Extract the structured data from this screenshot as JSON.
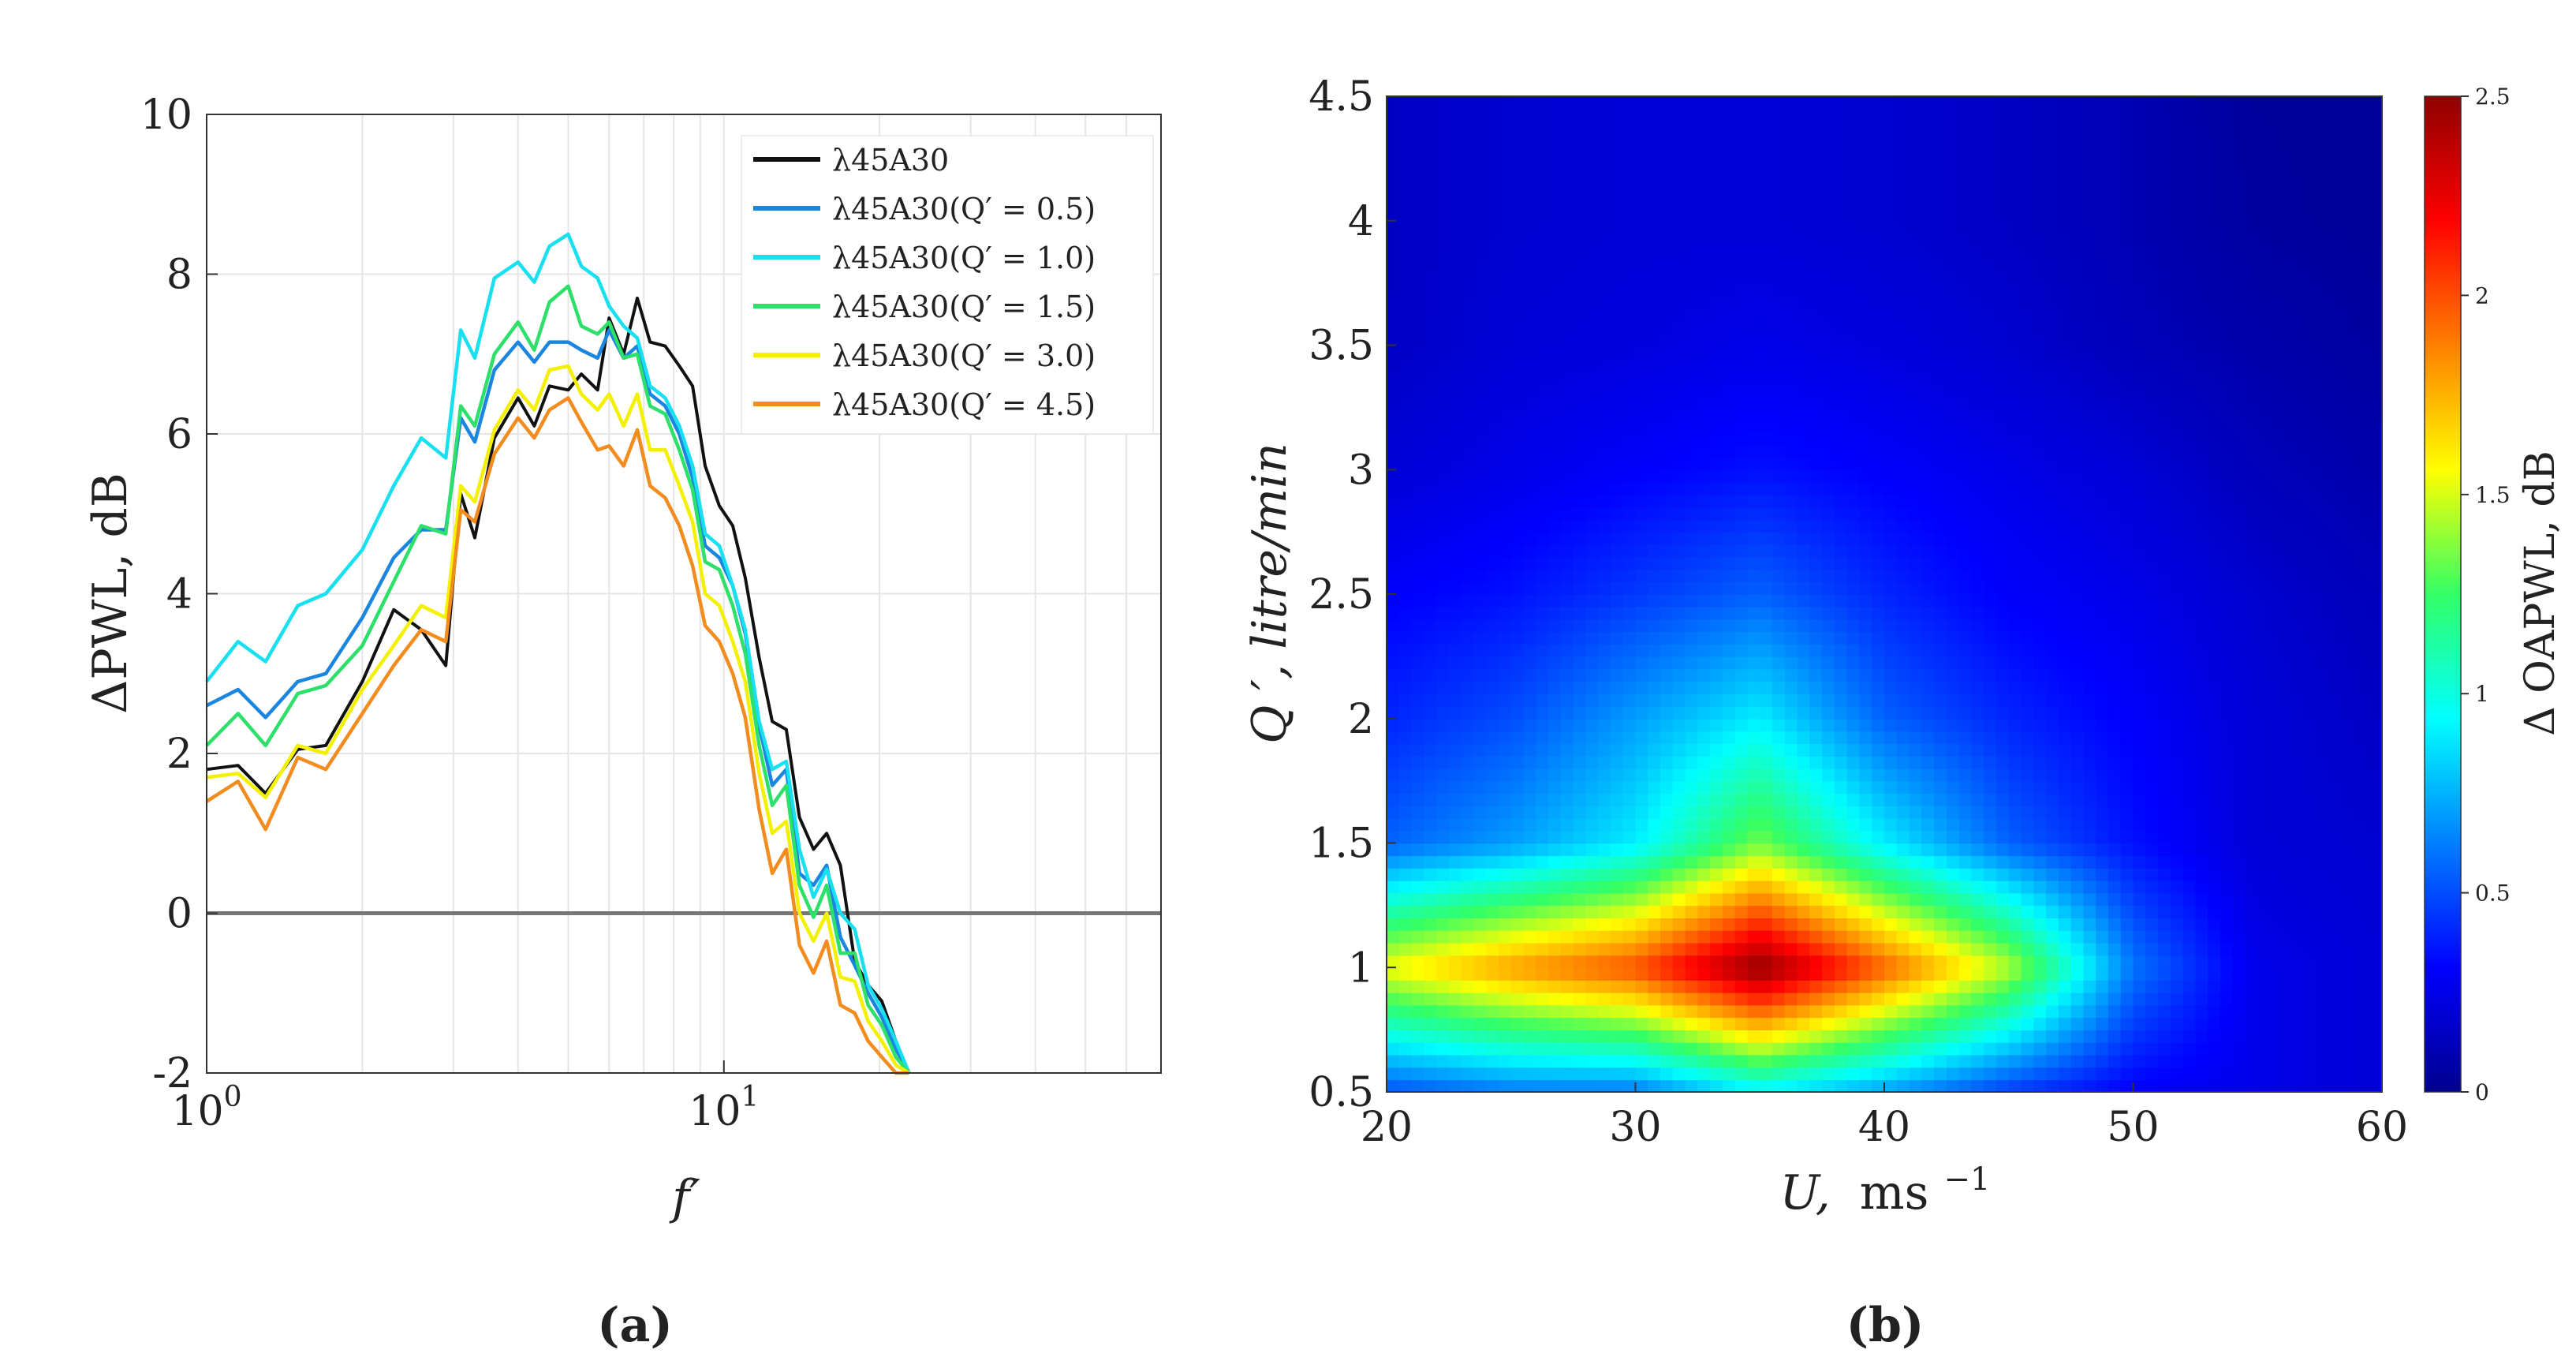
{
  "chart_data": [
    {
      "type": "line",
      "panel_label": "(a)",
      "xscale": "log",
      "xlim": [
        1,
        70
      ],
      "ylim": [
        -2,
        10
      ],
      "xlabel": "f′",
      "ylabel": "ΔPWL, dB",
      "xticks": [
        {
          "value": 1,
          "base": "10",
          "exp": "0"
        },
        {
          "value": 10,
          "base": "10",
          "exp": "1"
        }
      ],
      "yticks": [
        {
          "value": -2,
          "label": "-2"
        },
        {
          "value": 0,
          "label": "0"
        },
        {
          "value": 2,
          "label": "2"
        },
        {
          "value": 4,
          "label": "4"
        },
        {
          "value": 6,
          "label": "6"
        },
        {
          "value": 8,
          "label": "8"
        },
        {
          "value": 10,
          "label": "10"
        }
      ],
      "grid": true,
      "legend_position": "top-right",
      "x": [
        1.0,
        1.15,
        1.3,
        1.5,
        1.7,
        2.0,
        2.3,
        2.6,
        2.9,
        3.1,
        3.3,
        3.6,
        4.0,
        4.3,
        4.6,
        5.0,
        5.3,
        5.7,
        6.0,
        6.4,
        6.8,
        7.2,
        7.7,
        8.2,
        8.7,
        9.2,
        9.8,
        10.4,
        11.0,
        11.7,
        12.4,
        13.2,
        14.0,
        14.9,
        15.8,
        16.8,
        17.9,
        19.0,
        20.2,
        21.5,
        22.8
      ],
      "series": [
        {
          "name": "λ45A30",
          "color": "#111111",
          "values": [
            1.8,
            1.85,
            1.5,
            2.05,
            2.1,
            2.9,
            3.8,
            3.55,
            3.1,
            5.25,
            4.7,
            5.95,
            6.45,
            6.1,
            6.6,
            6.55,
            6.75,
            6.55,
            7.45,
            7.0,
            7.7,
            7.15,
            7.1,
            6.85,
            6.6,
            5.6,
            5.1,
            4.85,
            4.2,
            3.2,
            2.4,
            2.3,
            1.2,
            0.8,
            1.0,
            0.6,
            -0.6,
            -0.9,
            -1.1,
            -1.6,
            -2.0
          ]
        },
        {
          "name": "λ45A30(Q′ = 0.5)",
          "color": "#1a86e0",
          "values": [
            2.6,
            2.8,
            2.45,
            2.9,
            3.0,
            3.7,
            4.45,
            4.8,
            4.8,
            6.2,
            5.9,
            6.8,
            7.15,
            6.9,
            7.15,
            7.15,
            7.05,
            6.95,
            7.3,
            6.95,
            7.1,
            6.5,
            6.35,
            6.0,
            5.45,
            4.6,
            4.45,
            4.1,
            3.5,
            2.35,
            1.6,
            1.8,
            0.5,
            0.35,
            0.6,
            -0.3,
            -0.65,
            -1.0,
            -1.3,
            -1.7,
            -2.0
          ]
        },
        {
          "name": "λ45A30(Q′ = 1.0)",
          "color": "#19e0f0",
          "values": [
            2.9,
            3.4,
            3.15,
            3.85,
            4.0,
            4.55,
            5.35,
            5.95,
            5.7,
            7.3,
            6.95,
            7.95,
            8.15,
            7.9,
            8.35,
            8.5,
            8.1,
            7.95,
            7.6,
            7.35,
            7.2,
            6.6,
            6.45,
            6.1,
            5.6,
            4.75,
            4.6,
            4.1,
            3.55,
            2.4,
            1.8,
            1.9,
            0.8,
            0.2,
            0.55,
            0.0,
            -0.2,
            -0.9,
            -1.2,
            -1.6,
            -2.0
          ]
        },
        {
          "name": "λ45A30(Q′ = 1.5)",
          "color": "#2de06a",
          "values": [
            2.1,
            2.5,
            2.1,
            2.75,
            2.85,
            3.35,
            4.15,
            4.85,
            4.75,
            6.35,
            6.1,
            7.0,
            7.4,
            7.05,
            7.65,
            7.85,
            7.35,
            7.25,
            7.4,
            6.95,
            7.0,
            6.35,
            6.25,
            5.8,
            5.3,
            4.4,
            4.3,
            3.85,
            3.25,
            2.1,
            1.35,
            1.6,
            0.35,
            -0.05,
            0.35,
            -0.5,
            -0.5,
            -1.15,
            -1.4,
            -1.8,
            -2.0
          ]
        },
        {
          "name": "λ45A30(Q′ = 3.0)",
          "color": "#f3f000",
          "values": [
            1.7,
            1.75,
            1.45,
            2.1,
            2.0,
            2.8,
            3.35,
            3.85,
            3.7,
            5.35,
            5.15,
            6.05,
            6.55,
            6.3,
            6.8,
            6.85,
            6.5,
            6.3,
            6.5,
            6.1,
            6.5,
            5.8,
            5.8,
            5.35,
            4.9,
            4.0,
            3.85,
            3.4,
            2.9,
            1.75,
            1.0,
            1.15,
            0.0,
            -0.35,
            0.0,
            -0.8,
            -0.85,
            -1.35,
            -1.6,
            -1.9,
            -2.0
          ]
        },
        {
          "name": "λ45A30(Q′ = 4.5)",
          "color": "#f28c1e",
          "values": [
            1.4,
            1.65,
            1.05,
            1.95,
            1.8,
            2.5,
            3.1,
            3.55,
            3.4,
            5.05,
            4.9,
            5.75,
            6.2,
            5.95,
            6.3,
            6.45,
            6.15,
            5.8,
            5.85,
            5.6,
            6.05,
            5.35,
            5.2,
            4.85,
            4.35,
            3.6,
            3.4,
            3.0,
            2.45,
            1.3,
            0.5,
            0.8,
            -0.4,
            -0.75,
            -0.35,
            -1.15,
            -1.25,
            -1.6,
            -1.8,
            -2.0,
            -2.0
          ]
        }
      ]
    },
    {
      "type": "heatmap",
      "panel_label": "(b)",
      "x": [
        20,
        25,
        30,
        35,
        40,
        45,
        50,
        55,
        60
      ],
      "y": [
        0.5,
        1.0,
        1.5,
        2.0,
        2.5,
        3.0,
        3.5,
        4.0,
        4.5
      ],
      "z": [
        [
          0.5,
          0.6,
          0.6,
          0.9,
          0.7,
          0.45,
          0.3,
          0.25,
          0.2
        ],
        [
          1.55,
          1.8,
          2.0,
          2.5,
          1.95,
          1.45,
          0.6,
          0.25,
          0.2
        ],
        [
          0.55,
          0.7,
          0.9,
          1.35,
          0.9,
          0.55,
          0.35,
          0.2,
          0.18
        ],
        [
          0.4,
          0.5,
          0.7,
          0.9,
          0.55,
          0.4,
          0.3,
          0.2,
          0.15
        ],
        [
          0.3,
          0.35,
          0.45,
          0.55,
          0.4,
          0.3,
          0.25,
          0.18,
          0.12
        ],
        [
          0.2,
          0.25,
          0.3,
          0.35,
          0.3,
          0.25,
          0.2,
          0.12,
          0.08
        ],
        [
          0.15,
          0.2,
          0.22,
          0.25,
          0.22,
          0.18,
          0.12,
          0.08,
          0.05
        ],
        [
          0.15,
          0.18,
          0.2,
          0.2,
          0.18,
          0.15,
          0.1,
          0.05,
          0.03
        ],
        [
          0.15,
          0.18,
          0.2,
          0.2,
          0.18,
          0.15,
          0.1,
          0.04,
          0.03
        ]
      ],
      "xlim": [
        20,
        60
      ],
      "ylim": [
        0.5,
        4.5
      ],
      "xlabel_main": "U,",
      "xlabel_unit": "ms",
      "xlabel_exp": "−1",
      "ylabel": "Q ′, litre/min",
      "xticks": [
        {
          "value": 20,
          "label": "20"
        },
        {
          "value": 30,
          "label": "30"
        },
        {
          "value": 40,
          "label": "40"
        },
        {
          "value": 50,
          "label": "50"
        },
        {
          "value": 60,
          "label": "60"
        }
      ],
      "yticks": [
        {
          "value": 0.5,
          "label": "0.5"
        },
        {
          "value": 1,
          "label": "1"
        },
        {
          "value": 1.5,
          "label": "1.5"
        },
        {
          "value": 2,
          "label": "2"
        },
        {
          "value": 2.5,
          "label": "2.5"
        },
        {
          "value": 3,
          "label": "3"
        },
        {
          "value": 3.5,
          "label": "3.5"
        },
        {
          "value": 4,
          "label": "4"
        },
        {
          "value": 4.5,
          "label": "4.5"
        }
      ],
      "colorbar": {
        "label": "Δ OAPWL, dB",
        "range": [
          0,
          2.5
        ],
        "ticks": [
          {
            "value": 0,
            "label": "0"
          },
          {
            "value": 0.5,
            "label": "0.5"
          },
          {
            "value": 1,
            "label": "1"
          },
          {
            "value": 1.5,
            "label": "1.5"
          },
          {
            "value": 2,
            "label": "2"
          },
          {
            "value": 2.5,
            "label": "2.5"
          }
        ],
        "colormap": "jet"
      }
    }
  ]
}
